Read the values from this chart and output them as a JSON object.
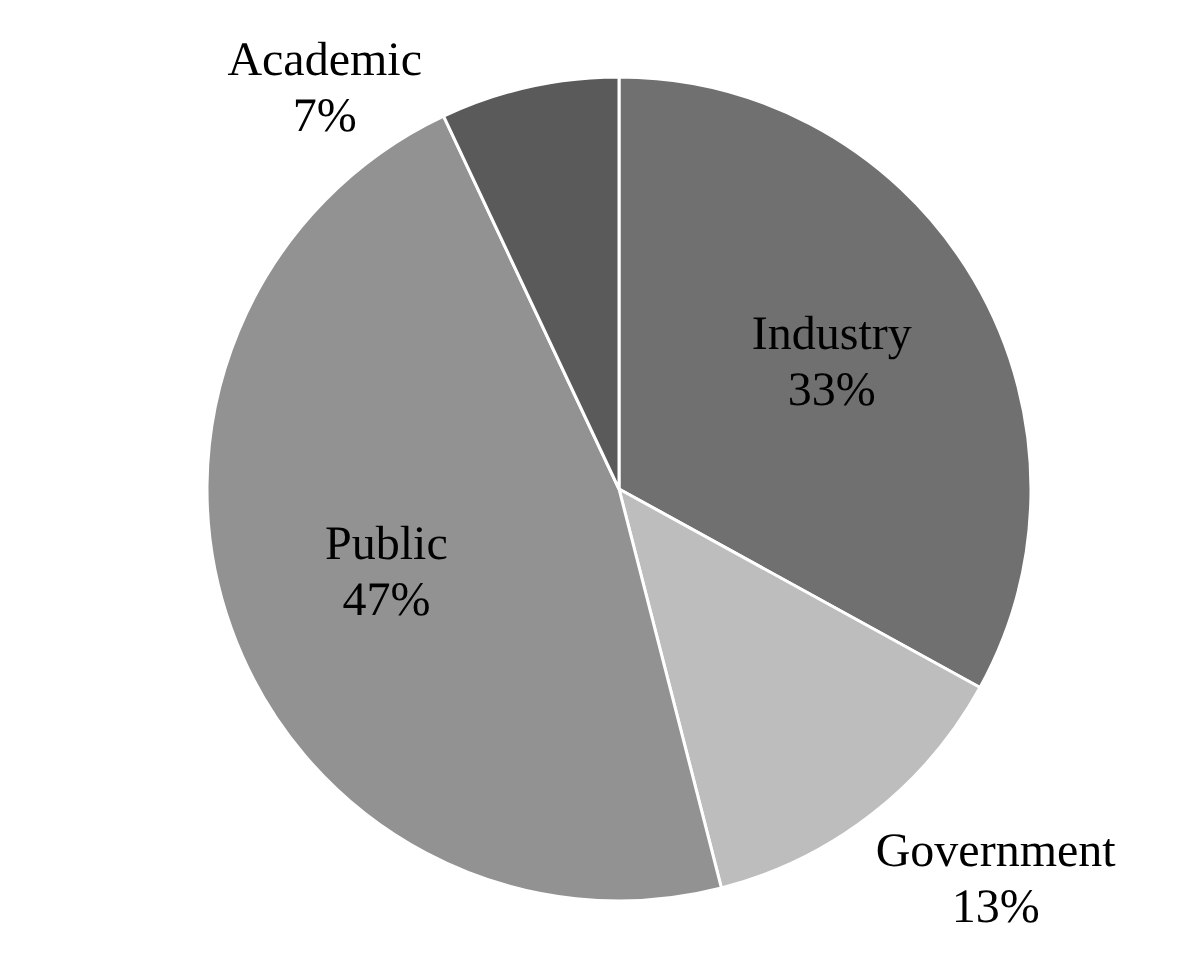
{
  "chart_data": {
    "type": "pie",
    "categories": [
      "Industry",
      "Government",
      "Public",
      "Academic"
    ],
    "values": [
      33,
      13,
      47,
      7
    ],
    "colors": [
      "#707070",
      "#bdbdbd",
      "#929292",
      "#5a5a5a"
    ],
    "value_labels": [
      "33%",
      "13%",
      "47%",
      "7%"
    ]
  }
}
